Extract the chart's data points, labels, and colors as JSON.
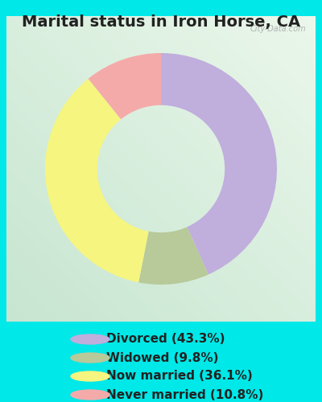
{
  "title": "Marital status in Iron Horse, CA",
  "segments": [
    {
      "label": "Divorced (43.3%)",
      "value": 43.3,
      "color": "#c0aedd"
    },
    {
      "label": "Widowed (9.8%)",
      "value": 9.8,
      "color": "#b8c99a"
    },
    {
      "label": "Now married (36.1%)",
      "value": 36.1,
      "color": "#f5f580"
    },
    {
      "label": "Never married (10.8%)",
      "value": 10.8,
      "color": "#f5aaaa"
    }
  ],
  "background_outer": "#00e8e8",
  "background_chart": "#d8eed8",
  "watermark": "City-Data.com",
  "title_fontsize": 14,
  "legend_fontsize": 11,
  "donut_width": 0.45,
  "title_color": "#222222",
  "legend_text_color": "#222222"
}
